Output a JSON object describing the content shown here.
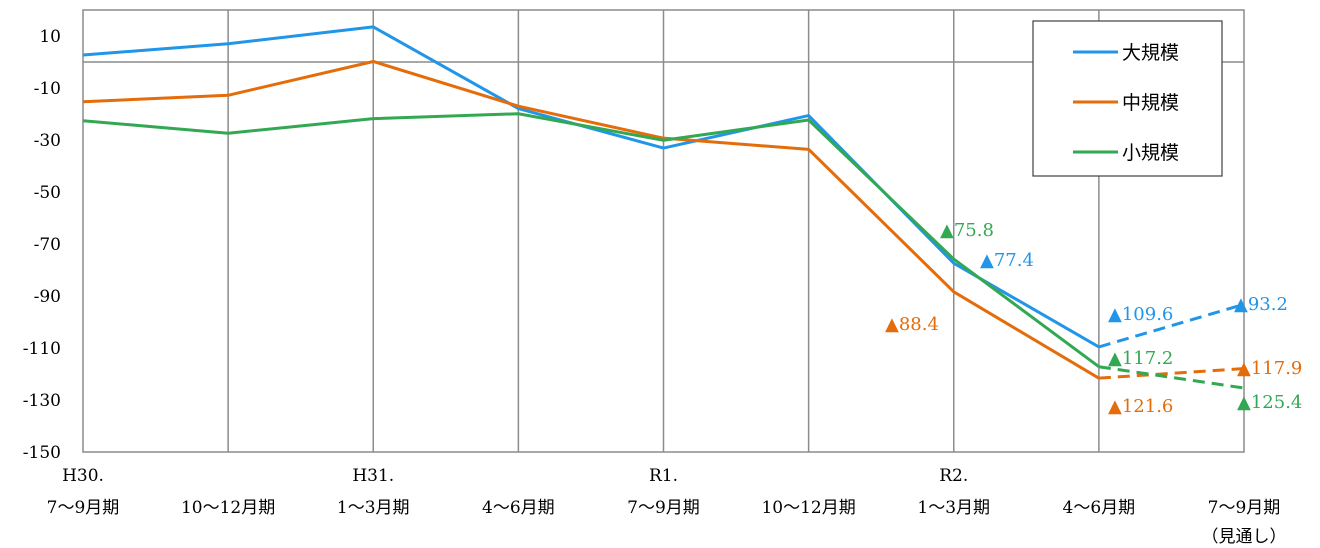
{
  "chart_data": {
    "type": "line",
    "categories": [
      {
        "line1": "H30.",
        "line2": "7〜9月期"
      },
      {
        "line1": "",
        "line2": "10〜12月期"
      },
      {
        "line1": "H31.",
        "line2": "1〜3月期"
      },
      {
        "line1": "",
        "line2": "4〜6月期"
      },
      {
        "line1": "R1.",
        "line2": "7〜9月期"
      },
      {
        "line1": "",
        "line2": "10〜12月期"
      },
      {
        "line1": "R2.",
        "line2": "1〜3月期"
      },
      {
        "line1": "",
        "line2": "4〜6月期"
      },
      {
        "line1": "",
        "line2": "7〜9月期",
        "line3": "（見通し）"
      }
    ],
    "ylim": [
      -150,
      20
    ],
    "yticks": [
      10,
      -10,
      -30,
      -50,
      -70,
      -90,
      -110,
      -130,
      -150
    ],
    "ytick_labels": [
      "10",
      "-10",
      "-30",
      "-50",
      "-70",
      "-90",
      "-110",
      "-130",
      "-150"
    ],
    "grid": true,
    "legend_position": "top-right",
    "series": [
      {
        "name": "大規模",
        "color": "#2196e8",
        "values": [
          2.7,
          7.0,
          13.5,
          -17.9,
          -33.1,
          -20.6,
          -77.4,
          -109.6,
          -93.2
        ],
        "forecast_from_index": 7
      },
      {
        "name": "中規模",
        "color": "#e46c0a",
        "values": [
          -15.3,
          -12.8,
          0.2,
          -17.0,
          -29.3,
          -33.6,
          -88.4,
          -121.6,
          -117.9
        ],
        "forecast_from_index": 7
      },
      {
        "name": "小規模",
        "color": "#33a852",
        "values": [
          -22.6,
          -27.4,
          -21.8,
          -19.9,
          -30.1,
          -22.3,
          -75.8,
          -117.2,
          -125.4
        ],
        "forecast_from_index": 7
      }
    ],
    "annotations": [
      {
        "series": "小規模",
        "text": "▲75.8"
      },
      {
        "series": "大規模",
        "text": "▲77.4"
      },
      {
        "series": "中規模",
        "text": "▲88.4"
      },
      {
        "series": "大規模",
        "text": "▲109.6"
      },
      {
        "series": "小規模",
        "text": "▲117.2"
      },
      {
        "series": "中規模",
        "text": "▲121.6"
      },
      {
        "series": "大規模",
        "text": "▲93.2"
      },
      {
        "series": "中規模",
        "text": "▲117.9"
      },
      {
        "series": "小規模",
        "text": "▲125.4"
      }
    ]
  }
}
